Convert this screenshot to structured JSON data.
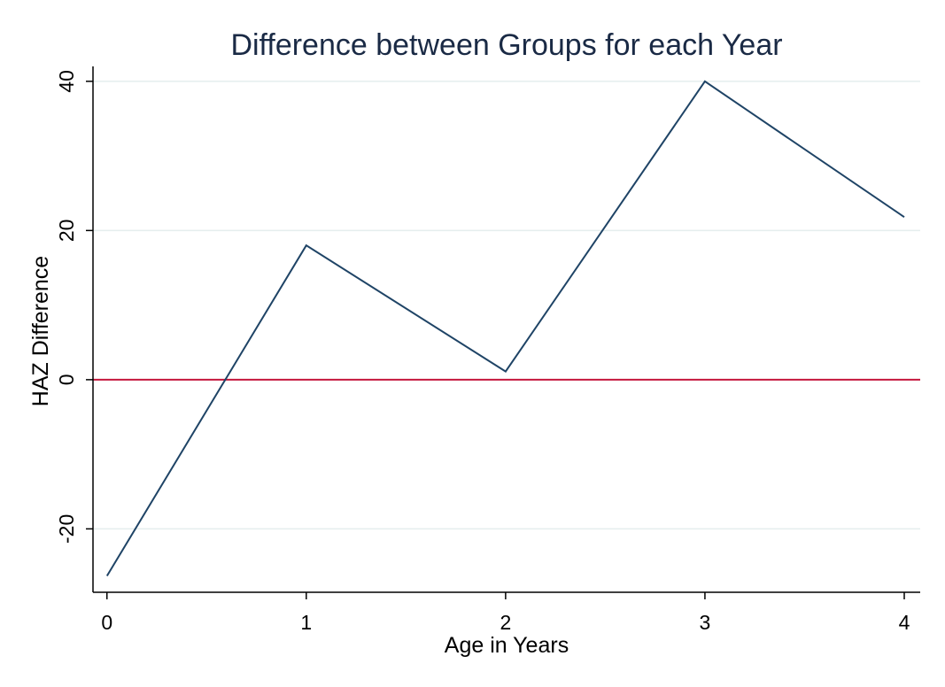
{
  "chart_data": {
    "type": "line",
    "title": "Difference between Groups for each Year",
    "xlabel": "Age in Years",
    "ylabel": "HAZ Difference",
    "x": [
      0,
      1,
      2,
      3,
      4
    ],
    "x_ticks": [
      "0",
      "1",
      "2",
      "3",
      "4"
    ],
    "y_ticks": [
      "-20",
      "0",
      "20",
      "40"
    ],
    "y_tick_values": [
      -20,
      0,
      20,
      40
    ],
    "xlim": [
      -0.07,
      4.08
    ],
    "ylim": [
      -28.5,
      42
    ],
    "series": [
      {
        "values": [
          -26.3,
          18,
          1.1,
          40,
          21.8
        ],
        "color": "#1f4466"
      }
    ],
    "reference_line": {
      "y": 0,
      "color": "#c4163c"
    },
    "grid": true,
    "grid_color": "#e5eeee",
    "legend": "none",
    "title_color": "#1a2a45"
  }
}
